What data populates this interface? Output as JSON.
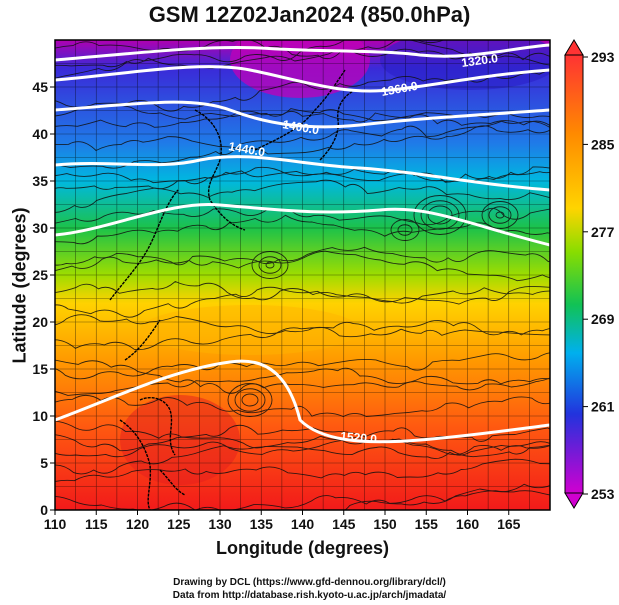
{
  "title": "GSM 12Z02Jan2024 (850.0hPa)",
  "x_axis": {
    "label": "Longitude (degrees)",
    "range": [
      110,
      170
    ],
    "ticks": [
      "110",
      "115",
      "120",
      "125",
      "130",
      "135",
      "140",
      "145",
      "150",
      "155",
      "160",
      "165"
    ]
  },
  "y_axis": {
    "label": "Latitude  (degrees)",
    "range": [
      0,
      50
    ],
    "ticks": [
      "0",
      "5",
      "10",
      "15",
      "20",
      "25",
      "30",
      "35",
      "40",
      "45"
    ]
  },
  "colorbar": {
    "ticks": [
      "293",
      "285",
      "277",
      "269",
      "261",
      "253"
    ],
    "colors": [
      "#cc00cc",
      "#2233dd",
      "#00a8ee",
      "#11c255",
      "#88dd00",
      "#ffd000",
      "#ff8800",
      "#ff3311"
    ]
  },
  "contours": {
    "labels": [
      "1320.0",
      "1360.0",
      "1400.0",
      "1440.0",
      "1520.0"
    ]
  },
  "credits": {
    "line1": "Drawing by DCL (https://www.gfd-dennou.org/library/dcl/)",
    "line2": "Data from http://database.rish.kyoto-u.ac.jp/arch/jmadata/"
  }
}
